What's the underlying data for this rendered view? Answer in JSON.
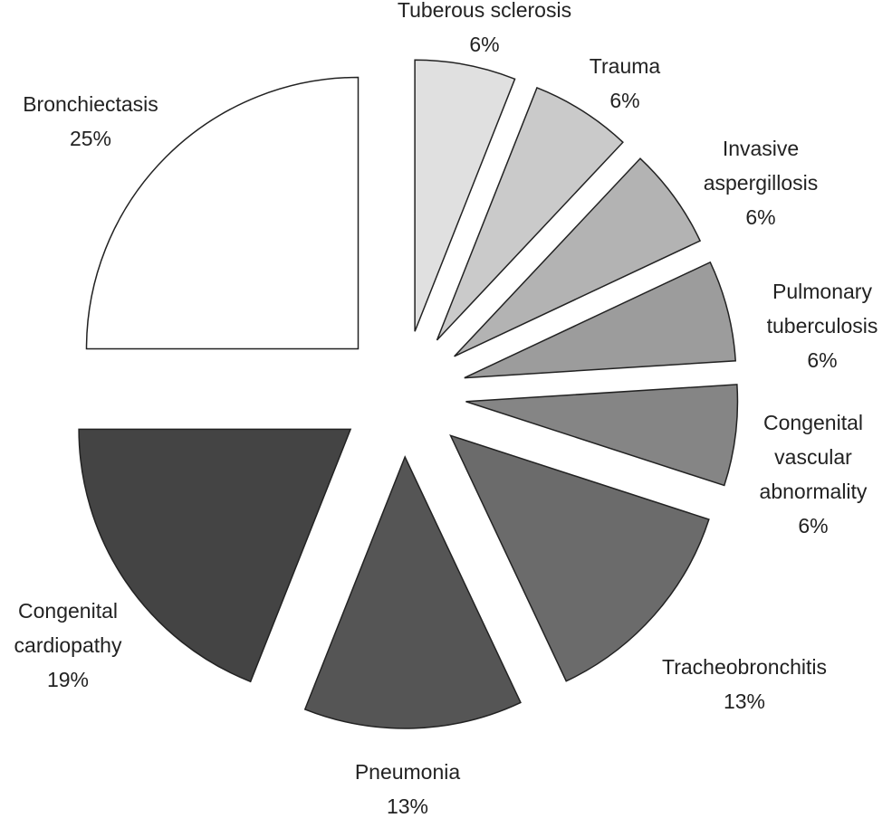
{
  "chart_data": {
    "type": "pie",
    "categories": [
      "Tuberous sclerosis",
      "Trauma",
      "Invasive aspergillosis",
      "Pulmonary tuberculosis",
      "Congenital vascular abnormality",
      "Tracheobronchitis",
      "Pneumonia",
      "Congenital cardiopathy",
      "Bronchiectasis"
    ],
    "values": [
      6,
      6,
      6,
      6,
      6,
      13,
      13,
      19,
      25
    ],
    "value_labels": [
      "6%",
      "6%",
      "6%",
      "6%",
      "6%",
      "13%",
      "13%",
      "19%",
      "25%"
    ],
    "colors": [
      "#e0e0e0",
      "#cacaca",
      "#b3b3b3",
      "#9c9c9c",
      "#858585",
      "#6b6b6b",
      "#555555",
      "#444444",
      "#ffffff"
    ]
  }
}
